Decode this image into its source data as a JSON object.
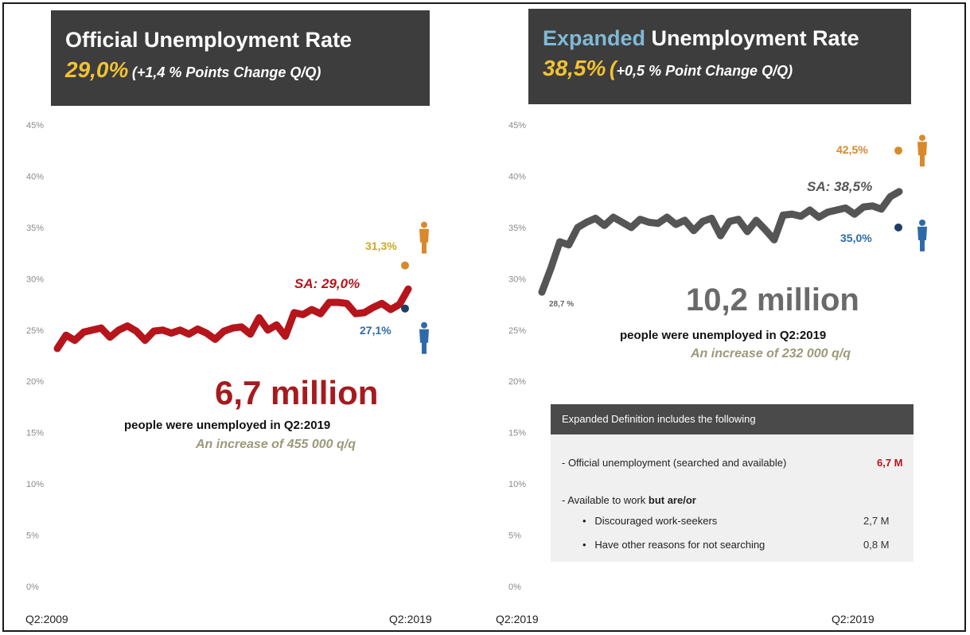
{
  "left": {
    "title": "Official Unemployment Rate",
    "rate": "29,0%",
    "change": "(+1,4 %  Points  Change Q/Q)",
    "big_number": "6,7 million",
    "subtitle": "people were unemployed in  Q2:2019",
    "increase": "An increase of 455 000 q/q",
    "sa_label": "SA: 29,0%",
    "female_label": "31,3%",
    "male_label": "27,1%"
  },
  "right": {
    "title_highlight": "Expanded",
    "title_rest": " Unemployment Rate",
    "rate": "38,5%",
    "change_open": "(",
    "change": "+0,5 % Point Change Q/Q)",
    "big_number": "10,2 million",
    "subtitle": "people were unemployed in Q2:2019",
    "increase": "An increase of 232 000 q/q",
    "sa_label": "SA: 38,5%",
    "female_label": "42,5%",
    "male_label": "35,0%",
    "start_label": "28,7 %",
    "definition": {
      "header": "Expanded  Definition includes  the following",
      "official_label": "- Official unemployment (searched and available)",
      "official_value": "6,7 M",
      "available_prefix": "- Available to work ",
      "available_bold": "but are/or",
      "discouraged_label": "Discouraged work-seekers",
      "discouraged_value": "2,7 M",
      "other_label": "Have other reasons for not searching",
      "other_value": "0,8 M"
    }
  },
  "colors": {
    "official_line": "#b5151b",
    "expanded_line": "#555555",
    "female": "#d8892b",
    "male": "#2f6aa8",
    "rate_yellow": "#f2c232",
    "title_bg": "#3d3d3d"
  },
  "chart_data": [
    {
      "type": "line",
      "title": "Official Unemployment Rate",
      "y_ticks": [
        "45%",
        "40%",
        "35%",
        "30%",
        "25%",
        "20%",
        "15%",
        "10%",
        "5%",
        "0%"
      ],
      "x_labels": [
        "Q2:2009",
        "Q2:2019"
      ],
      "ylim": [
        0,
        45
      ],
      "series": [
        {
          "name": "SA",
          "values": [
            23.2,
            24.5,
            24.0,
            24.8,
            25.0,
            25.2,
            24.3,
            25.0,
            25.4,
            24.9,
            24.0,
            24.9,
            25.0,
            24.7,
            25.0,
            24.6,
            25.1,
            24.7,
            24.1,
            24.9,
            25.2,
            25.3,
            24.6,
            26.2,
            25.0,
            25.5,
            24.4,
            26.7,
            26.5,
            27.0,
            26.6,
            27.7,
            27.7,
            27.6,
            26.6,
            26.7,
            27.2,
            27.6,
            27.0,
            27.5,
            29.0
          ]
        }
      ],
      "points": [
        {
          "label": "Female",
          "value": 31.3
        },
        {
          "label": "Male",
          "value": 27.1
        }
      ]
    },
    {
      "type": "line",
      "title": "Expanded Unemployment Rate",
      "y_ticks": [
        "45%",
        "40%",
        "35%",
        "30%",
        "25%",
        "20%",
        "15%",
        "10%",
        "5%",
        "0%"
      ],
      "x_labels": [
        "Q2:2019",
        "Q2:2019"
      ],
      "ylim": [
        0,
        45
      ],
      "series": [
        {
          "name": "SA",
          "values": [
            28.7,
            31.0,
            33.6,
            33.3,
            35.0,
            35.5,
            35.9,
            35.2,
            36.0,
            35.5,
            35.0,
            35.8,
            35.5,
            35.4,
            36.0,
            35.3,
            35.7,
            34.7,
            35.6,
            35.9,
            34.2,
            35.6,
            35.8,
            34.6,
            35.7,
            34.8,
            33.8,
            36.2,
            36.3,
            36.1,
            36.7,
            36.0,
            36.5,
            36.7,
            36.9,
            36.3,
            37.0,
            37.1,
            36.8,
            38.0,
            38.5
          ]
        }
      ],
      "points": [
        {
          "label": "Female",
          "value": 42.5
        },
        {
          "label": "Male",
          "value": 35.0
        }
      ]
    }
  ]
}
